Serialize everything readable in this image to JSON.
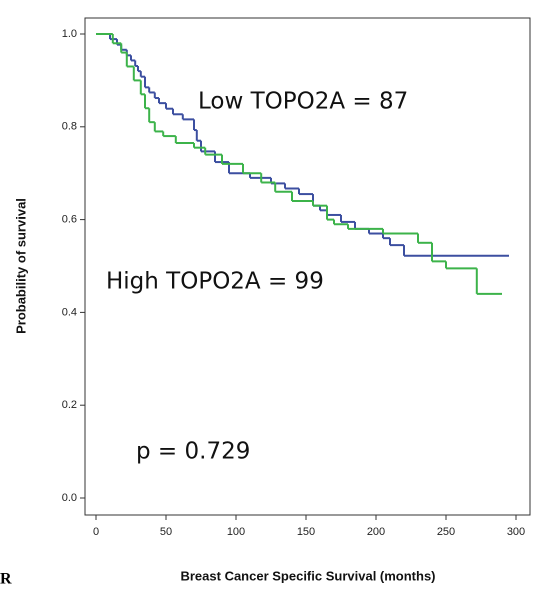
{
  "chart_data": {
    "type": "step",
    "xlabel": "Breast Cancer Specific Survival (months)",
    "ylabel": "Probability of survival",
    "annotations": [
      "Low TOPO2A = 87",
      "High TOPO2A = 99",
      "p = 0.729"
    ],
    "corner_mark": "R",
    "xlim": [
      0,
      300
    ],
    "xticks": [
      0,
      50,
      100,
      150,
      200,
      250,
      300
    ],
    "ylim": [
      0,
      1
    ],
    "yticks": [
      {
        "value": 0,
        "label": "0.0"
      },
      {
        "value": 0.2,
        "label": "0.2"
      },
      {
        "value": 0.4,
        "label": "0.4"
      },
      {
        "value": 0.6,
        "label": "0.6"
      },
      {
        "value": 0.8,
        "label": "0.8"
      },
      {
        "value": 1,
        "label": "1.0"
      }
    ],
    "series": [
      {
        "color": "#3c4fa0",
        "x": [
          0,
          10,
          15,
          18,
          22,
          25,
          28,
          30,
          32,
          35,
          38,
          42,
          45,
          50,
          55,
          62,
          70,
          72,
          75,
          85,
          95,
          110,
          125,
          135,
          145,
          155,
          160,
          165,
          175,
          185,
          195,
          205,
          210,
          220,
          295
        ],
        "values": [
          1.0,
          0.989,
          0.977,
          0.966,
          0.954,
          0.943,
          0.931,
          0.92,
          0.908,
          0.885,
          0.874,
          0.862,
          0.851,
          0.839,
          0.827,
          0.816,
          0.793,
          0.77,
          0.747,
          0.724,
          0.7,
          0.69,
          0.678,
          0.667,
          0.655,
          0.63,
          0.62,
          0.61,
          0.595,
          0.58,
          0.57,
          0.56,
          0.545,
          0.522,
          0.522
        ]
      },
      {
        "color": "#3cb34a",
        "x": [
          0,
          12,
          18,
          22,
          27,
          32,
          35,
          38,
          42,
          48,
          57,
          70,
          78,
          90,
          105,
          118,
          128,
          140,
          155,
          165,
          170,
          180,
          205,
          230,
          240,
          250,
          272,
          290
        ],
        "values": [
          1.0,
          0.98,
          0.96,
          0.93,
          0.9,
          0.87,
          0.84,
          0.81,
          0.79,
          0.78,
          0.765,
          0.755,
          0.74,
          0.72,
          0.7,
          0.68,
          0.66,
          0.64,
          0.63,
          0.6,
          0.59,
          0.58,
          0.57,
          0.55,
          0.51,
          0.495,
          0.44,
          0.44
        ]
      }
    ]
  }
}
